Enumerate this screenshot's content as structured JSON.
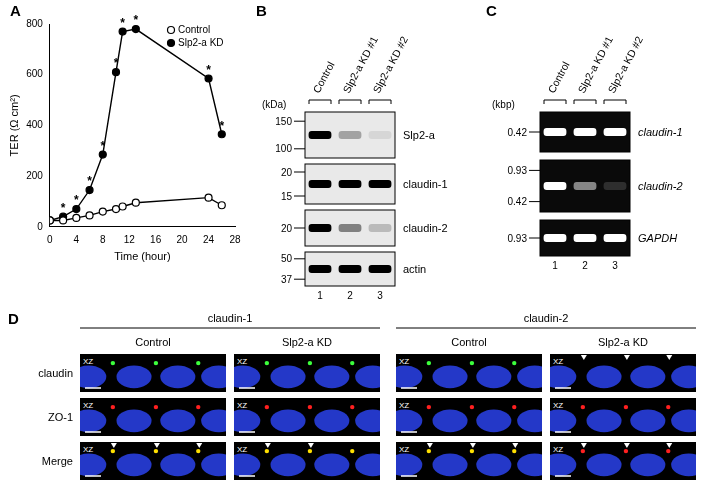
{
  "chart_data": {
    "type": "line",
    "x_label": "Time (hour)",
    "y_label": "TER (Ω cm²)",
    "x": [
      0,
      2,
      4,
      6,
      8,
      10,
      11,
      13,
      24,
      26
    ],
    "series": [
      {
        "name": "Control",
        "color": "#000000",
        "marker": "open_circle",
        "values": [
          25,
          25,
          35,
          45,
          60,
          70,
          80,
          95,
          115,
          85
        ]
      },
      {
        "name": "Slp2-a KD",
        "color": "#000000",
        "marker": "filled_circle",
        "values": [
          25,
          40,
          70,
          145,
          285,
          610,
          770,
          780,
          585,
          365
        ]
      }
    ],
    "xlim": [
      0,
      28
    ],
    "xticks": [
      0,
      4,
      8,
      12,
      16,
      20,
      24,
      28
    ],
    "ylim": [
      0,
      800
    ],
    "yticks": [
      0,
      200,
      400,
      600,
      800
    ],
    "grid": false,
    "legend": "upper right",
    "annotations": [
      {
        "x": 2,
        "text": "*"
      },
      {
        "x": 4,
        "text": "*"
      },
      {
        "x": 6,
        "text": "*"
      },
      {
        "x": 8,
        "text": "*"
      },
      {
        "x": 10,
        "text": "*"
      },
      {
        "x": 11,
        "text": "*"
      },
      {
        "x": 13,
        "text": "*"
      },
      {
        "x": 24,
        "text": "*"
      },
      {
        "x": 26,
        "text": "*"
      }
    ]
  },
  "panel_labels": [
    "A",
    "B",
    "C",
    "D"
  ],
  "panel_B": {
    "unit_label": "(kDa)",
    "lanes": [
      "Control",
      "Slp2-a KD #1",
      "Slp2-a KD #2"
    ],
    "lane_numbers": [
      1,
      2,
      3
    ],
    "rows": [
      {
        "name": "Slp2-a",
        "markers": [
          150,
          100
        ],
        "intensity": [
          1,
          0.3,
          0.08
        ]
      },
      {
        "name": "claudin-1",
        "markers": [
          20,
          15
        ],
        "intensity": [
          1,
          1,
          1
        ]
      },
      {
        "name": "claudin-2",
        "markers": [
          20
        ],
        "intensity": [
          1,
          0.45,
          0.2
        ]
      },
      {
        "name": "actin",
        "markers": [
          50,
          37
        ],
        "intensity": [
          1,
          1,
          1
        ]
      }
    ]
  },
  "panel_C": {
    "unit_label": "(kbp)",
    "lanes": [
      "Control",
      "Slp2-a KD #1",
      "Slp2-a KD #2"
    ],
    "lane_numbers": [
      1,
      2,
      3
    ],
    "rows": [
      {
        "name": "claudin-1",
        "markers": [
          0.42
        ],
        "intensity": [
          1,
          1,
          1
        ]
      },
      {
        "name": "claudin-2",
        "markers": [
          0.93,
          0.42
        ],
        "intensity": [
          1,
          0.5,
          0.15
        ]
      },
      {
        "name": "GAPDH",
        "markers": [
          0.93
        ],
        "intensity": [
          1,
          1,
          1
        ]
      }
    ]
  },
  "panel_D": {
    "groups": [
      "claudin-1",
      "claudin-2"
    ],
    "rows": [
      "claudin",
      "ZO-1",
      "Merge"
    ],
    "image_label": "XZ",
    "columns": [
      {
        "group": "claudin-1",
        "condition": "Control",
        "claudin_signal": 1,
        "arrowheads": [
          0,
          0,
          3
        ]
      },
      {
        "group": "claudin-1",
        "condition": "Slp2-a KD",
        "claudin_signal": 1,
        "arrowheads": [
          0,
          0,
          2
        ]
      },
      {
        "group": "claudin-2",
        "condition": "Control",
        "claudin_signal": 1,
        "arrowheads": [
          0,
          0,
          3
        ]
      },
      {
        "group": "claudin-2",
        "condition": "Slp2-a KD",
        "claudin_signal": 0,
        "arrowheads": [
          3,
          0,
          3
        ]
      }
    ]
  }
}
